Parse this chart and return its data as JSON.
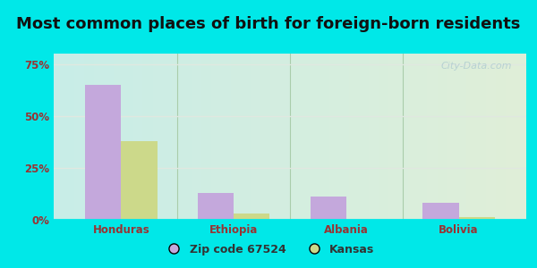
{
  "title": "Most common places of birth for foreign-born residents",
  "categories": [
    "Honduras",
    "Ethiopia",
    "Albania",
    "Bolivia"
  ],
  "zip_values": [
    65,
    13,
    11,
    8
  ],
  "kansas_values": [
    38,
    3,
    0,
    1.5
  ],
  "zip_color": "#c4a8dc",
  "kansas_color": "#ccd98a",
  "bar_width": 0.32,
  "ylim": [
    0,
    80
  ],
  "yticks": [
    0,
    25,
    50,
    75
  ],
  "ytick_labels": [
    "0%",
    "25%",
    "50%",
    "75%"
  ],
  "legend_zip_label": "Zip code 67524",
  "legend_kansas_label": "Kansas",
  "title_fontsize": 13,
  "tick_fontsize": 8.5,
  "outer_bg": "#00e8e8",
  "plot_bg_left": "#c8ede8",
  "plot_bg_right": "#e0efd8",
  "watermark_text": "City-Data.com",
  "grid_color": "#e0e8e0",
  "axis_tick_color": "#993333",
  "separator_color": "#aaccaa"
}
